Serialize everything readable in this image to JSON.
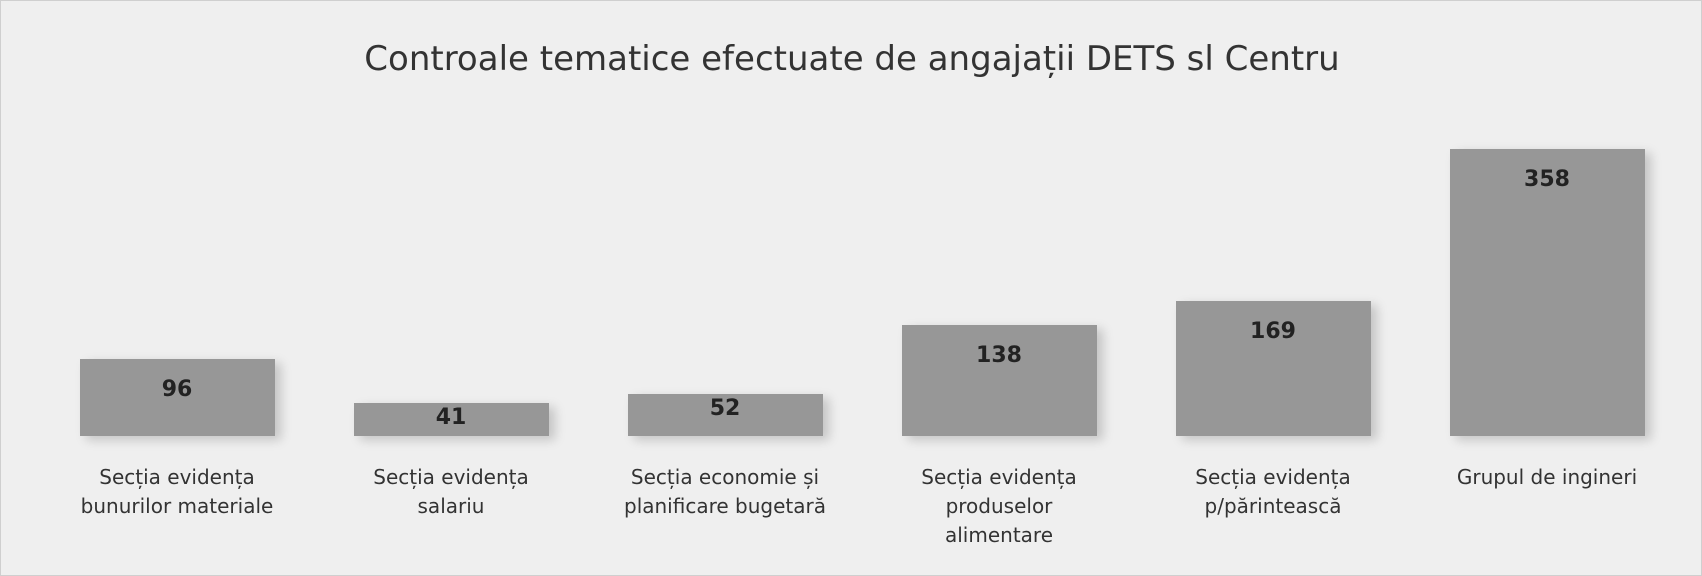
{
  "chart_data": {
    "type": "bar",
    "title": "Controale tematice efectuate de angajații DETS sl Centru",
    "categories": [
      "Secția evidența\nbunurilor materiale",
      "Secția evidența\nsalariu",
      "Secția economie și\nplanificare  bugetară",
      "Secția evidența\nproduselor\nalimentare",
      "Secția evidența\np/părintească",
      "Grupul de ingineri"
    ],
    "values": [
      96,
      41,
      52,
      138,
      169,
      358
    ],
    "color": "#979797"
  }
}
